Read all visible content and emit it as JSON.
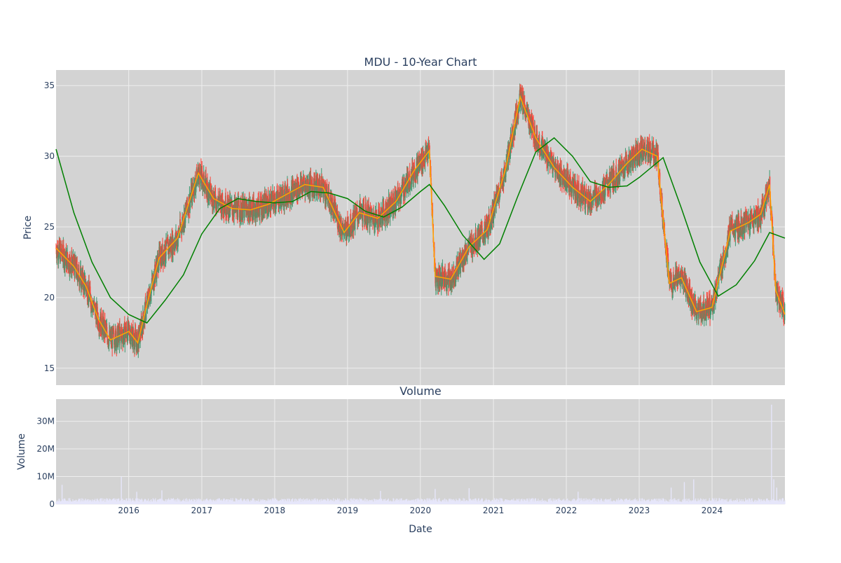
{
  "chart_data": [
    {
      "type": "candlestick",
      "title": "MDU - 10-Year Chart",
      "ylabel": "Price",
      "xlim": [
        "2015-01-02",
        "2024-12-31"
      ],
      "ylim": [
        13.8,
        36.1
      ],
      "y_ticks": [
        15,
        20,
        25,
        30,
        35
      ],
      "grid": true,
      "legend": "none",
      "colors": {
        "increasing": "#3d9970",
        "decreasing": "#ff4136",
        "ma_short": "#ffa500",
        "ma_long": "#008000",
        "plot_bg": "#d3d3d3",
        "grid": "#eeeeee"
      },
      "series": [
        {
          "type": "line",
          "color": "#ffa500",
          "x": [
            "2015-01-02",
            "2015-04-01",
            "2015-06-01",
            "2015-08-01",
            "2015-10-01",
            "2016-01-02",
            "2016-02-15",
            "2016-04-01",
            "2016-06-01",
            "2016-09-01",
            "2016-12-15",
            "2017-03-01",
            "2017-06-01",
            "2017-09-01",
            "2017-12-01",
            "2018-03-01",
            "2018-06-01",
            "2018-09-01",
            "2018-12-15",
            "2019-03-01",
            "2019-06-01",
            "2019-09-01",
            "2019-12-01",
            "2020-02-15",
            "2020-03-15",
            "2020-06-01",
            "2020-09-01",
            "2020-12-01",
            "2021-03-01",
            "2021-05-15",
            "2021-08-01",
            "2021-11-01",
            "2022-02-01",
            "2022-05-01",
            "2022-08-01",
            "2022-11-01",
            "2023-01-15",
            "2023-04-01",
            "2023-06-01",
            "2023-08-01",
            "2023-10-15",
            "2024-01-01",
            "2024-04-01",
            "2024-07-01",
            "2024-09-01",
            "2024-10-15",
            "2024-11-15",
            "2024-12-31"
          ],
          "y": [
            23.5,
            22.2,
            20.8,
            18.5,
            17.0,
            17.6,
            16.8,
            19.5,
            22.8,
            24.2,
            28.8,
            27.0,
            26.3,
            26.2,
            26.6,
            27.3,
            28.0,
            27.8,
            24.6,
            26.0,
            25.6,
            26.8,
            29.0,
            30.4,
            21.5,
            21.3,
            23.6,
            24.8,
            29.0,
            34.2,
            31.3,
            29.2,
            27.8,
            26.8,
            28.0,
            29.5,
            30.5,
            30.0,
            21.0,
            21.4,
            19.0,
            19.3,
            24.7,
            25.3,
            25.9,
            28.0,
            20.5,
            18.8
          ]
        },
        {
          "type": "line",
          "color": "#008000",
          "x": [
            "2015-01-02",
            "2015-04-01",
            "2015-07-01",
            "2015-10-01",
            "2016-01-01",
            "2016-04-01",
            "2016-07-01",
            "2016-10-01",
            "2017-01-01",
            "2017-04-01",
            "2017-07-01",
            "2017-10-01",
            "2018-01-01",
            "2018-04-01",
            "2018-07-01",
            "2018-10-01",
            "2019-01-01",
            "2019-04-01",
            "2019-07-01",
            "2019-10-01",
            "2020-01-01",
            "2020-02-15",
            "2020-05-01",
            "2020-08-01",
            "2020-11-15",
            "2021-02-01",
            "2021-05-01",
            "2021-08-01",
            "2021-11-01",
            "2022-02-01",
            "2022-05-01",
            "2022-08-01",
            "2022-11-01",
            "2023-01-01",
            "2023-05-01",
            "2023-08-01",
            "2023-11-01",
            "2024-02-01",
            "2024-05-01",
            "2024-08-01",
            "2024-10-15",
            "2024-12-31"
          ],
          "y": [
            30.5,
            26.0,
            22.5,
            20.0,
            18.8,
            18.2,
            19.8,
            21.6,
            24.5,
            26.3,
            27.0,
            26.8,
            26.7,
            26.8,
            27.5,
            27.4,
            27.0,
            26.1,
            25.7,
            26.4,
            27.5,
            28.0,
            26.5,
            24.4,
            22.7,
            23.8,
            27.1,
            30.3,
            31.3,
            30.0,
            28.2,
            27.8,
            27.9,
            28.5,
            29.9,
            26.3,
            22.5,
            20.1,
            20.9,
            22.6,
            24.6,
            24.2
          ]
        }
      ]
    },
    {
      "type": "bar",
      "title": "Volume",
      "xlabel": "Date",
      "ylabel": "Volume",
      "ylim": [
        0,
        38000000
      ],
      "y_ticks": [
        0,
        10000000,
        20000000,
        30000000
      ],
      "y_tick_labels": [
        "0",
        "10M",
        "20M",
        "30M"
      ],
      "x_ticks": [
        "2016-01-01",
        "2017-01-01",
        "2018-01-01",
        "2019-01-01",
        "2020-01-01",
        "2021-01-01",
        "2022-01-01",
        "2023-01-01",
        "2024-01-01"
      ],
      "x_tick_labels": [
        "2016",
        "2017",
        "2018",
        "2019",
        "2020",
        "2021",
        "2022",
        "2023",
        "2024"
      ],
      "color": "#e6e6fa",
      "grid": true,
      "spikes": [
        {
          "x": "2015-02-01",
          "value": 7000000
        },
        {
          "x": "2015-11-25",
          "value": 10000000
        },
        {
          "x": "2016-02-10",
          "value": 4500000
        },
        {
          "x": "2016-06-15",
          "value": 5000000
        },
        {
          "x": "2019-06-15",
          "value": 4800000
        },
        {
          "x": "2020-03-15",
          "value": 5500000
        },
        {
          "x": "2020-09-01",
          "value": 5800000
        },
        {
          "x": "2022-03-01",
          "value": 4500000
        },
        {
          "x": "2023-06-10",
          "value": 6000000
        },
        {
          "x": "2023-08-15",
          "value": 8000000
        },
        {
          "x": "2023-10-01",
          "value": 9000000
        },
        {
          "x": "2024-10-25",
          "value": 36000000
        },
        {
          "x": "2024-11-05",
          "value": 9000000
        },
        {
          "x": "2024-11-20",
          "value": 6000000
        }
      ]
    }
  ]
}
